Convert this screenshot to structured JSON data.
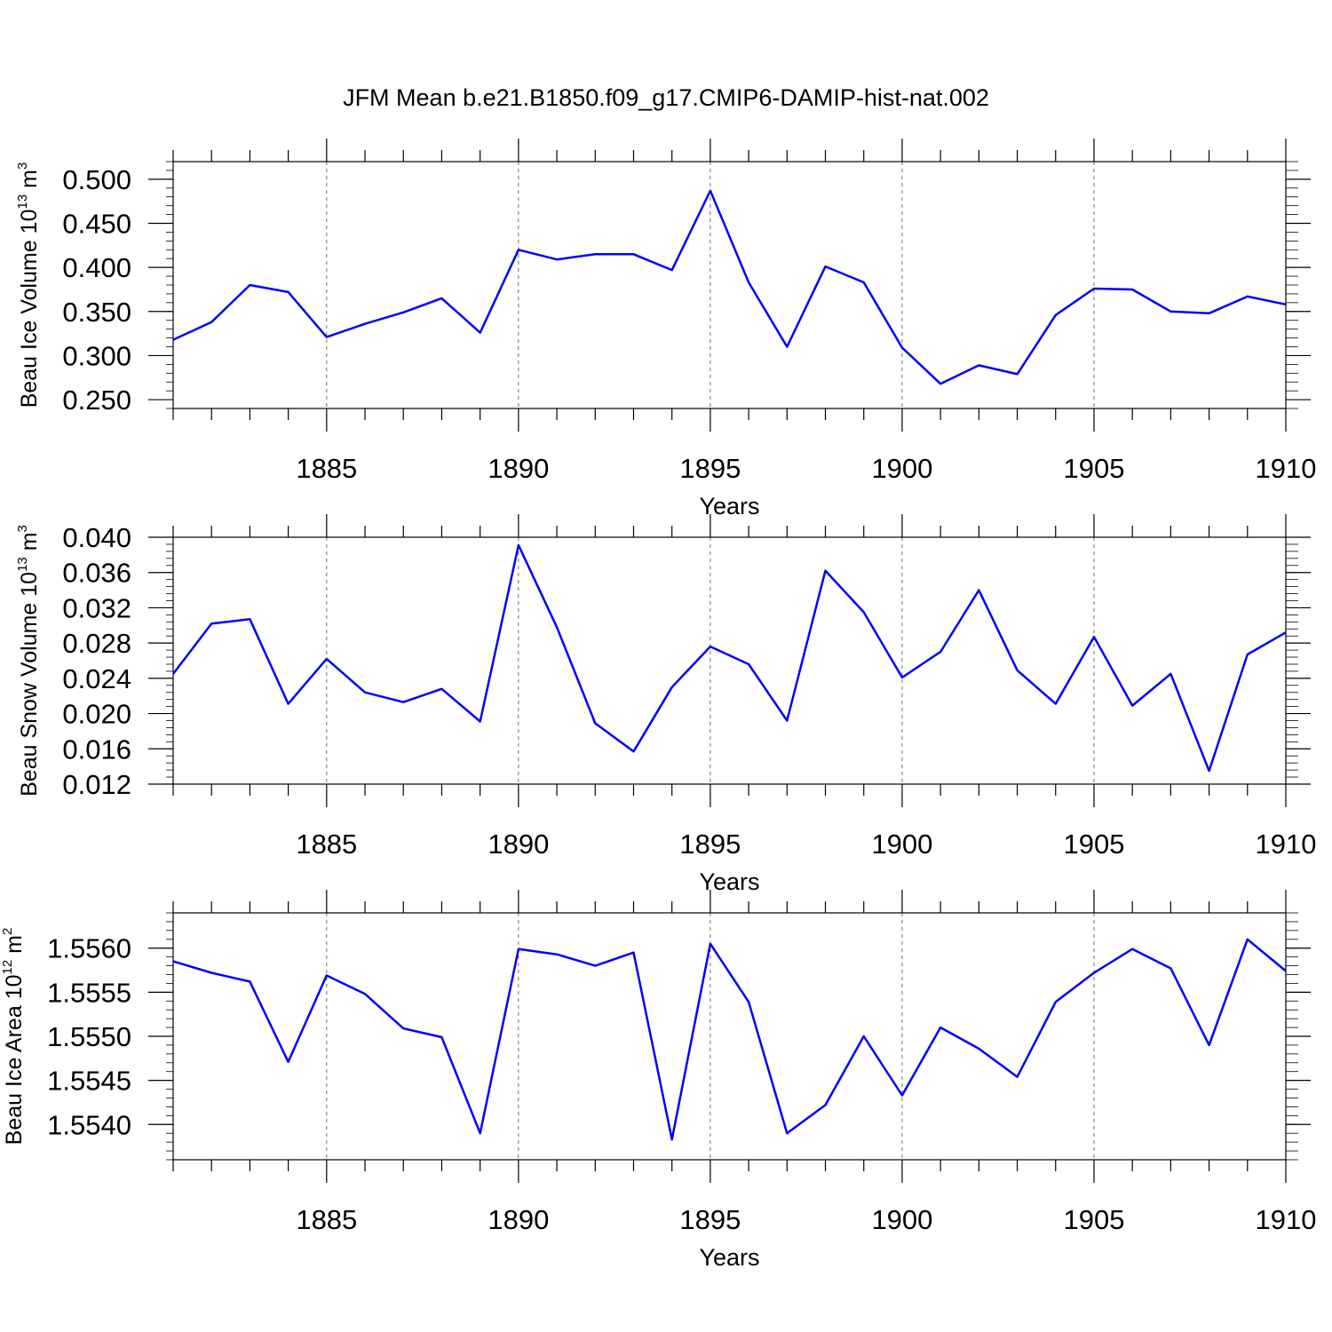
{
  "title": "JFM Mean b.e21.B1850.f09_g17.CMIP6-DAMIP-hist-nat.002",
  "line_color": "#0000ff",
  "chart_data": [
    {
      "type": "line",
      "ylabel": "Beau Ice Volume 10",
      "ylabel_exp": "13",
      "ylabel_unit": " m",
      "ylabel_unit_exp": "3",
      "xlabel": "Years",
      "xlim": [
        1881,
        1910
      ],
      "ylim": [
        0.24,
        0.52
      ],
      "xticks": [
        1885,
        1890,
        1895,
        1900,
        1905,
        1910
      ],
      "yticks": [
        "0.250",
        "0.300",
        "0.350",
        "0.400",
        "0.450",
        "0.500"
      ],
      "x": [
        1881,
        1882,
        1883,
        1884,
        1885,
        1886,
        1887,
        1888,
        1889,
        1890,
        1891,
        1892,
        1893,
        1894,
        1895,
        1896,
        1897,
        1898,
        1899,
        1900,
        1901,
        1902,
        1903,
        1904,
        1905,
        1906,
        1907,
        1908,
        1909,
        1910
      ],
      "values": [
        0.318,
        0.338,
        0.38,
        0.372,
        0.321,
        0.336,
        0.349,
        0.365,
        0.326,
        0.42,
        0.409,
        0.415,
        0.415,
        0.397,
        0.487,
        0.383,
        0.31,
        0.401,
        0.383,
        0.309,
        0.268,
        0.289,
        0.279,
        0.346,
        0.376,
        0.375,
        0.35,
        0.348,
        0.367,
        0.358
      ]
    },
    {
      "type": "line",
      "ylabel": "Beau Snow Volume 10",
      "ylabel_exp": "13",
      "ylabel_unit": " m",
      "ylabel_unit_exp": "3",
      "xlabel": "Years",
      "xlim": [
        1881,
        1910
      ],
      "ylim": [
        0.012,
        0.04
      ],
      "xticks": [
        1885,
        1890,
        1895,
        1900,
        1905,
        1910
      ],
      "yticks": [
        "0.012",
        "0.016",
        "0.020",
        "0.024",
        "0.028",
        "0.032",
        "0.036",
        "0.040"
      ],
      "x": [
        1881,
        1882,
        1883,
        1884,
        1885,
        1886,
        1887,
        1888,
        1889,
        1890,
        1891,
        1892,
        1893,
        1894,
        1895,
        1896,
        1897,
        1898,
        1899,
        1900,
        1901,
        1902,
        1903,
        1904,
        1905,
        1906,
        1907,
        1908,
        1909,
        1910
      ],
      "values": [
        0.0245,
        0.0302,
        0.0307,
        0.0211,
        0.0262,
        0.0224,
        0.0213,
        0.0228,
        0.0191,
        0.0391,
        0.0298,
        0.0189,
        0.0157,
        0.023,
        0.0276,
        0.0256,
        0.0192,
        0.0362,
        0.0315,
        0.0241,
        0.027,
        0.034,
        0.0249,
        0.0211,
        0.0287,
        0.0209,
        0.0245,
        0.0135,
        0.0267,
        0.0292
      ]
    },
    {
      "type": "line",
      "ylabel": "Beau Ice Area 10",
      "ylabel_exp": "12",
      "ylabel_unit": " m",
      "ylabel_unit_exp": "2",
      "xlabel": "Years",
      "xlim": [
        1881,
        1910
      ],
      "ylim": [
        1.5536,
        1.5564
      ],
      "xticks": [
        1885,
        1890,
        1895,
        1900,
        1905,
        1910
      ],
      "yticks": [
        "1.5540",
        "1.5545",
        "1.5550",
        "1.5555",
        "1.5560"
      ],
      "x": [
        1881,
        1882,
        1883,
        1884,
        1885,
        1886,
        1887,
        1888,
        1889,
        1890,
        1891,
        1892,
        1893,
        1894,
        1895,
        1896,
        1897,
        1898,
        1899,
        1900,
        1901,
        1902,
        1903,
        1904,
        1905,
        1906,
        1907,
        1908,
        1909,
        1910
      ],
      "values": [
        1.55585,
        1.55572,
        1.55562,
        1.55471,
        1.55569,
        1.55548,
        1.55509,
        1.55499,
        1.5539,
        1.55599,
        1.55593,
        1.5558,
        1.55595,
        1.55383,
        1.55605,
        1.55539,
        1.5539,
        1.55422,
        1.555,
        1.55433,
        1.5551,
        1.55486,
        1.55454,
        1.55539,
        1.55572,
        1.55599,
        1.55577,
        1.5549,
        1.5561,
        1.55574
      ]
    }
  ]
}
